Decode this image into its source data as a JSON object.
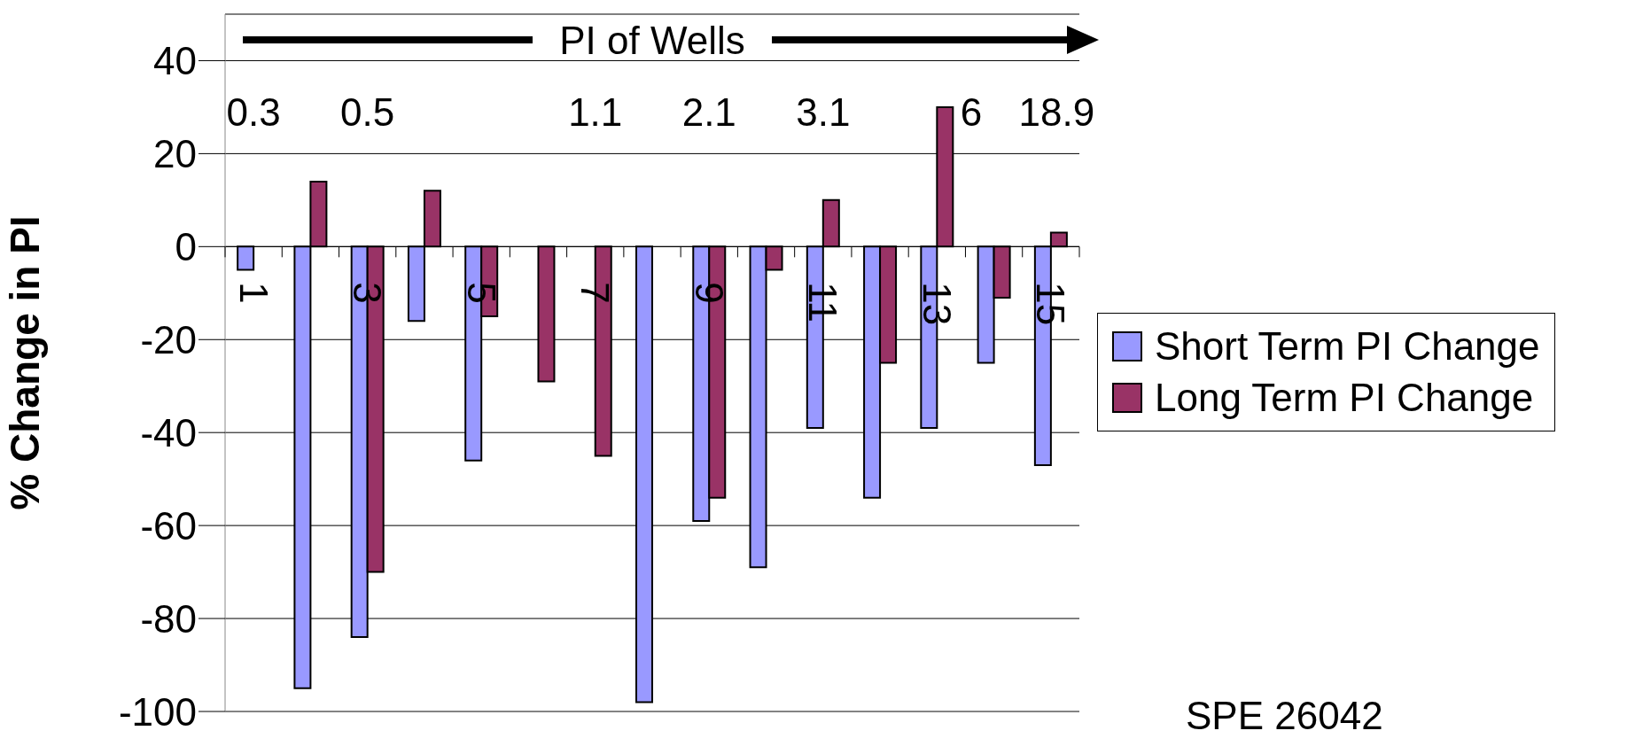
{
  "chart_data": {
    "type": "bar",
    "ylabel": "% Change in PI",
    "categories": [
      "1",
      null,
      "3",
      null,
      "5",
      null,
      "7",
      null,
      "9",
      null,
      "11",
      null,
      "13",
      null,
      "15"
    ],
    "series": [
      {
        "name": "Short Term PI Change",
        "color": "#9999ff",
        "values": [
          -5,
          -95,
          -84,
          -16,
          -46,
          null,
          null,
          -98,
          -59,
          -69,
          -39,
          -54,
          -39,
          -25,
          -47
        ]
      },
      {
        "name": "Long Term PI Change",
        "color": "#993366",
        "values": [
          null,
          14,
          -70,
          12,
          -15,
          -29,
          -45,
          null,
          -54,
          -5,
          10,
          -25,
          30,
          -11,
          3
        ]
      }
    ],
    "ylim": [
      -100,
      50
    ],
    "yticks": [
      -100,
      -80,
      -60,
      -40,
      -20,
      0,
      20,
      40
    ],
    "grid": "y",
    "legend": "right",
    "annotations": [
      "PI of Wells",
      "0.3",
      "0.5",
      "1.1",
      "2.1",
      "3.1",
      "6",
      "18.9",
      "SPE 26042"
    ]
  }
}
